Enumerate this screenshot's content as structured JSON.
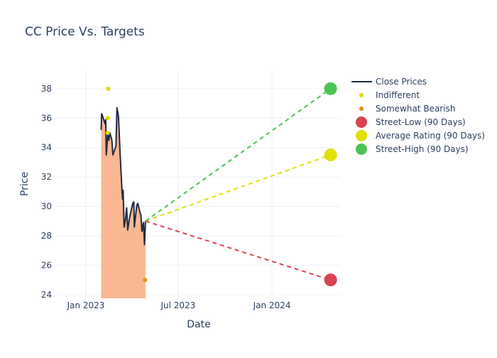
{
  "chart_data": {
    "type": "line",
    "title": "CC Price Vs. Targets",
    "xlabel": "Date",
    "ylabel": "Price",
    "xlim": [
      "2022-11-05",
      "2024-05-15"
    ],
    "ylim": [
      23.75,
      39.2
    ],
    "x_ticks": [
      {
        "date": "2023-01-01",
        "label": "Jan 2023"
      },
      {
        "date": "2023-07-01",
        "label": "Jul 2023"
      },
      {
        "date": "2024-01-01",
        "label": "Jan 2024"
      }
    ],
    "y_ticks": [
      24,
      26,
      28,
      30,
      32,
      34,
      36,
      38
    ],
    "grid": true,
    "legend_position": "right",
    "close_prices": {
      "name": "Close Prices",
      "color": "#1f2a44",
      "fill_color": "#f9b891",
      "x": [
        "2023-01-31",
        "2023-02-01",
        "2023-02-06",
        "2023-02-08",
        "2023-02-09",
        "2023-02-10",
        "2023-02-13",
        "2023-02-15",
        "2023-02-17",
        "2023-02-21",
        "2023-02-23",
        "2023-02-27",
        "2023-03-01",
        "2023-03-03",
        "2023-03-06",
        "2023-03-09",
        "2023-03-13",
        "2023-03-14",
        "2023-03-15",
        "2023-03-17",
        "2023-03-20",
        "2023-03-22",
        "2023-03-24",
        "2023-03-27",
        "2023-03-30",
        "2023-04-03",
        "2023-04-05",
        "2023-04-06",
        "2023-04-11",
        "2023-04-13",
        "2023-04-17",
        "2023-04-19",
        "2023-04-21",
        "2023-04-24",
        "2023-04-26",
        "2023-04-28"
      ],
      "y": [
        35.2,
        36.3,
        35.8,
        35.6,
        35.9,
        33.5,
        34.9,
        34.5,
        35.0,
        34.5,
        33.5,
        33.9,
        34.1,
        36.7,
        36.1,
        33.7,
        31.0,
        30.5,
        31.1,
        28.6,
        29.2,
        29.9,
        28.4,
        29.1,
        29.6,
        30.2,
        30.3,
        28.6,
        30.1,
        30.2,
        29.6,
        29.4,
        28.3,
        28.9,
        27.4,
        29.0
      ]
    },
    "ratings": [
      {
        "name": "Indifferent",
        "color": "#e0dc00",
        "points": [
          {
            "x": "2023-02-14",
            "y": 38
          },
          {
            "x": "2023-02-13",
            "y": 36
          },
          {
            "x": "2023-02-13",
            "y": 35
          }
        ]
      },
      {
        "name": "Somewhat Bearish",
        "color": "#e0901a",
        "points": [
          {
            "x": "2023-04-27",
            "y": 25
          }
        ]
      }
    ],
    "targets": [
      {
        "name": "Street-Low (90 Days)",
        "color": "#d9424f",
        "x": "2024-04-25",
        "y": 25
      },
      {
        "name": "Average Rating (90 Days)",
        "color": "#e0e000",
        "x": "2024-04-25",
        "y": 33.5
      },
      {
        "name": "Street-High (90 Days)",
        "color": "#4cc552",
        "x": "2024-04-25",
        "y": 38
      }
    ]
  }
}
